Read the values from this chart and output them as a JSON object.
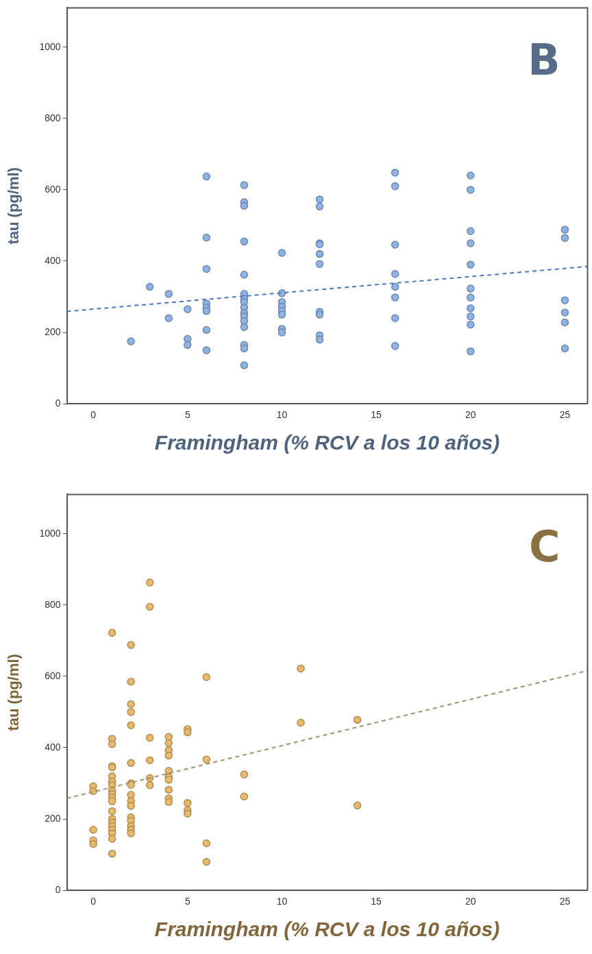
{
  "chart_data": [
    {
      "type": "scatter",
      "xlabel": "Framingham (% RCV a los 10 años)",
      "ylabel": "tau (pg/ml)",
      "annotations": [
        "B"
      ],
      "xlim": [
        -1.4,
        26.2
      ],
      "ylim": [
        0,
        1110
      ],
      "xticks": [
        0,
        5,
        10,
        15,
        20,
        25
      ],
      "yticks": [
        0,
        200,
        400,
        600,
        800,
        1000
      ],
      "grid": false,
      "legend": false,
      "marker": "circle",
      "series": [
        {
          "color": "#8fb4e3",
          "x": [
            2,
            3,
            4,
            4,
            5,
            5,
            5,
            6,
            6,
            6,
            6,
            6,
            6,
            6,
            6,
            8,
            8,
            8,
            8,
            8,
            8,
            8,
            8,
            8,
            8,
            8,
            8,
            8,
            8,
            8,
            8,
            10,
            10,
            10,
            10,
            10,
            10,
            10,
            10,
            12,
            12,
            12,
            12,
            12,
            12,
            12,
            12,
            12,
            12,
            16,
            16,
            16,
            16,
            16,
            16,
            16,
            16,
            20,
            20,
            20,
            20,
            20,
            20,
            20,
            20,
            20,
            20,
            20,
            25,
            25,
            25,
            25,
            25,
            25
          ],
          "values": [
            175,
            328,
            308,
            240,
            265,
            182,
            165,
            637,
            466,
            378,
            281,
            270,
            260,
            207,
            150,
            613,
            565,
            555,
            455,
            362,
            308,
            295,
            285,
            270,
            255,
            245,
            232,
            215,
            165,
            155,
            108,
            423,
            310,
            285,
            272,
            260,
            250,
            210,
            200,
            573,
            553,
            450,
            447,
            420,
            392,
            258,
            250,
            192,
            180,
            648,
            610,
            446,
            364,
            328,
            298,
            240,
            162,
            640,
            600,
            484,
            450,
            390,
            323,
            298,
            268,
            245,
            222,
            147,
            488,
            465,
            290,
            256,
            228,
            155
          ]
        },
        {
          "type": "line",
          "color": "#4a78c0",
          "line_style": "dashed",
          "marker": "none",
          "x": [
            -1.4,
            26.2
          ],
          "values": [
            259,
            385
          ]
        }
      ]
    },
    {
      "type": "scatter",
      "xlabel": "Framingham (% RCV a los 10 años)",
      "ylabel": "tau (pg/ml)",
      "annotations": [
        "C"
      ],
      "xlim": [
        -1.4,
        26.2
      ],
      "ylim": [
        0,
        1110
      ],
      "xticks": [
        0,
        5,
        10,
        15,
        20,
        25
      ],
      "yticks": [
        0,
        200,
        400,
        600,
        800,
        1000
      ],
      "grid": false,
      "legend": false,
      "marker": "circle",
      "series": [
        {
          "color": "#e8bb6c",
          "x": [
            0,
            0,
            0,
            0,
            0,
            1,
            1,
            1,
            1,
            1,
            1,
            1,
            1,
            1,
            1,
            1,
            1,
            1,
            1,
            1,
            1,
            1,
            1,
            1,
            1,
            2,
            2,
            2,
            2,
            2,
            2,
            2,
            2,
            2,
            2,
            2,
            2,
            2,
            2,
            2,
            2,
            3,
            3,
            3,
            3,
            3,
            3,
            4,
            4,
            4,
            4,
            4,
            4,
            4,
            4,
            4,
            4,
            5,
            5,
            5,
            5,
            5,
            6,
            6,
            6,
            6,
            8,
            8,
            11,
            11,
            14,
            14
          ],
          "values": [
            292,
            278,
            170,
            140,
            130,
            722,
            425,
            410,
            348,
            345,
            320,
            305,
            295,
            280,
            270,
            260,
            250,
            222,
            200,
            190,
            180,
            170,
            160,
            145,
            103,
            688,
            585,
            522,
            500,
            463,
            357,
            300,
            296,
            268,
            250,
            237,
            205,
            195,
            180,
            170,
            160,
            863,
            795,
            428,
            365,
            315,
            295,
            430,
            413,
            393,
            378,
            335,
            318,
            310,
            282,
            258,
            248,
            452,
            443,
            245,
            225,
            215,
            598,
            367,
            132,
            80,
            325,
            263,
            622,
            470,
            478,
            238
          ]
        },
        {
          "type": "line",
          "color": "#a09070",
          "line_style": "dashed",
          "marker": "none",
          "x": [
            -1.4,
            26.2
          ],
          "values": [
            258,
            616
          ]
        }
      ]
    }
  ]
}
